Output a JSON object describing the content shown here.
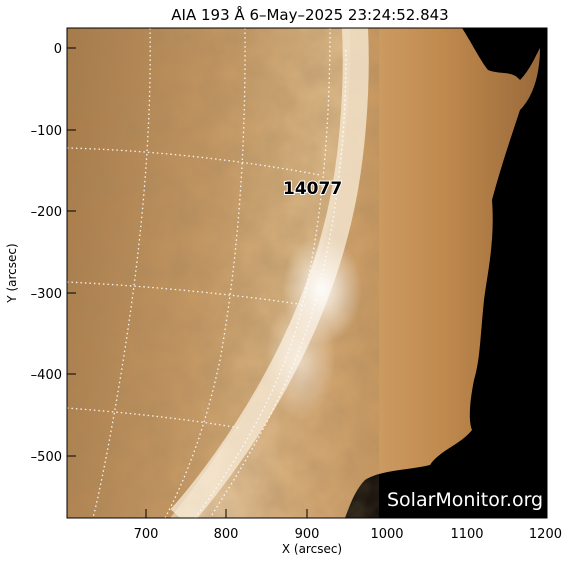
{
  "title": "AIA 193 Å  6–May–2025 23:24:52.843",
  "x_axis": {
    "label": "X (arcsec)",
    "ticks": [
      "700",
      "800",
      "900",
      "1000",
      "1100",
      "1200"
    ]
  },
  "y_axis": {
    "label": "Y (arcsec)",
    "ticks": [
      "0",
      "–100",
      "–200",
      "–300",
      "–400",
      "–500"
    ]
  },
  "active_region": "14077",
  "watermark": "SolarMonitor.org",
  "colors": {
    "disk": "#c79a64",
    "limb": "#f6e7cf",
    "corona": "#c38f55",
    "space": "#000000"
  }
}
